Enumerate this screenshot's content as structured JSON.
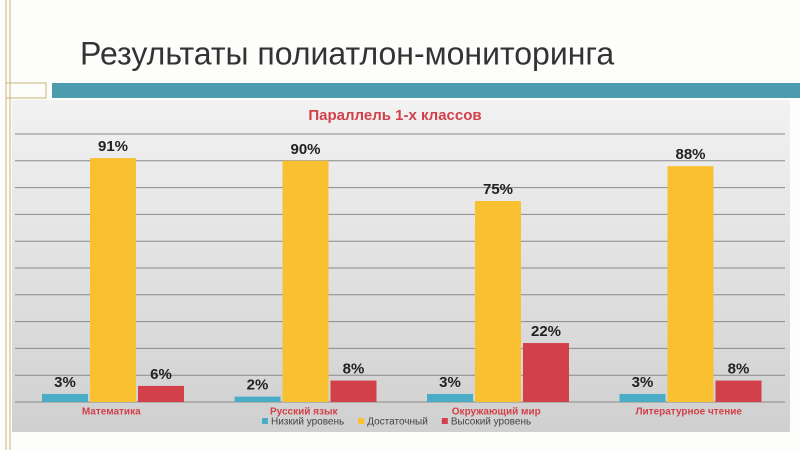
{
  "slide_title": "Результаты полиатлон-мониторинга",
  "chart_data": {
    "type": "bar",
    "title": "Параллель 1-х классов",
    "categories": [
      "Математика",
      "Русский язык",
      "Окружающий мир",
      "Литературное чтение"
    ],
    "series": [
      {
        "name": "Низкий уровень",
        "color": "#4bacc6",
        "values": [
          3,
          2,
          3,
          3
        ],
        "value_labels": [
          "3%",
          "2%",
          "3%",
          "3%"
        ]
      },
      {
        "name": "Достаточный",
        "color": "#f9c02f",
        "values": [
          91,
          90,
          75,
          88
        ],
        "value_labels": [
          "91%",
          "90%",
          "75%",
          "88%"
        ]
      },
      {
        "name": "Высокий уровень",
        "color": "#d2404a",
        "values": [
          6,
          8,
          22,
          8
        ],
        "value_labels": [
          "6%",
          "8%",
          "22%",
          "8%"
        ]
      }
    ],
    "ylim": [
      0,
      100
    ],
    "yticks": [
      0,
      10,
      20,
      30,
      40,
      50,
      60,
      70,
      80,
      90,
      100
    ],
    "grid": true,
    "legend": "bottom"
  }
}
